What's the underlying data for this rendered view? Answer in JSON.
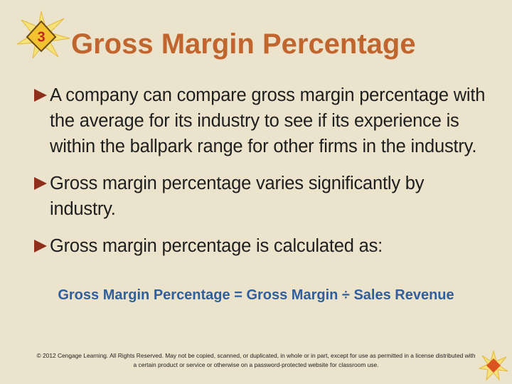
{
  "slide": {
    "badge": "3",
    "title": "Gross Margin Percentage",
    "bullets": [
      "A company can compare gross margin percentage with the average for its industry to see if its experience is within the ballpark range for other firms in the industry.",
      "Gross margin percentage varies significantly by industry.",
      "Gross margin percentage is calculated as:"
    ],
    "formula": "Gross Margin Percentage = Gross Margin ÷ Sales Revenue",
    "footer": "© 2012 Cengage Learning. All Rights Reserved. May not be copied, scanned, or duplicated, in whole or in part, except for use as permitted in a license distributed with a certain product or service or otherwise on a password-protected website for classroom use."
  }
}
